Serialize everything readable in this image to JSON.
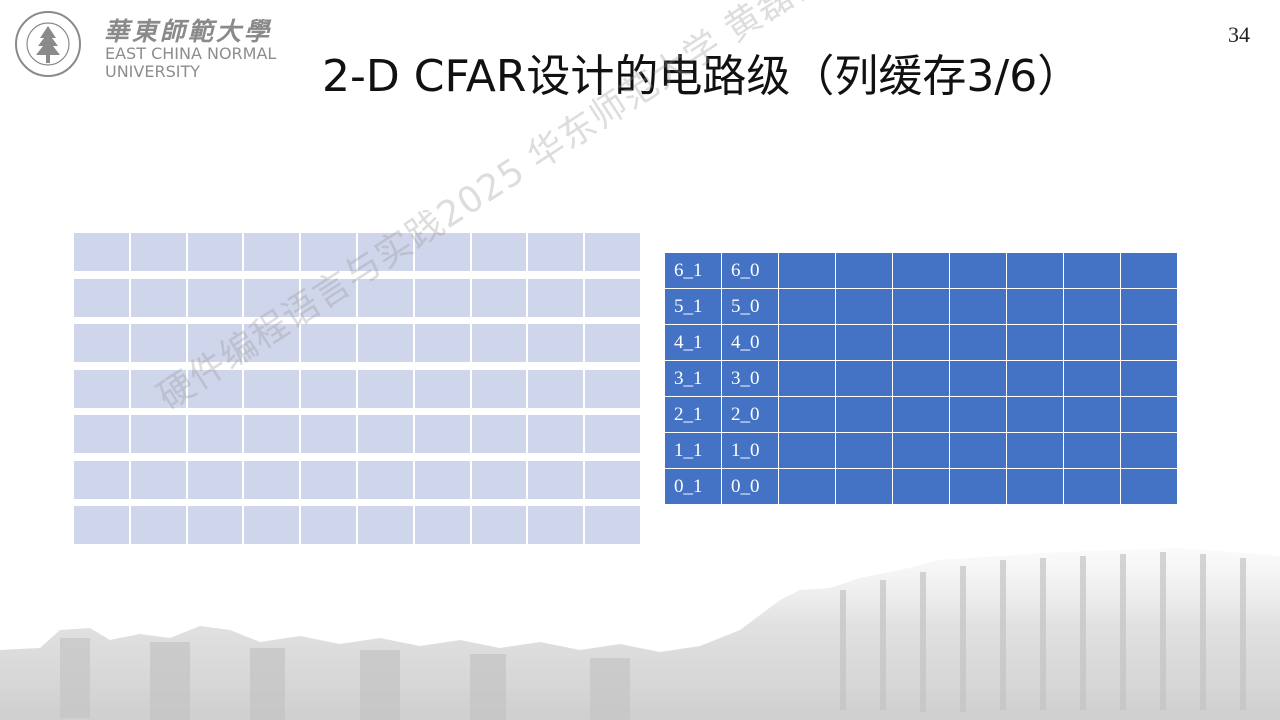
{
  "logo": {
    "cn_name": "華東師範大學",
    "en_line1": "EAST CHINA NORMAL",
    "en_line2": "UNIVERSITY"
  },
  "slide": {
    "title": "2-D CFAR设计的电路级（列缓存3/6）",
    "page_number": "34"
  },
  "watermark": "硬件编程语言与实践2025 华东师范大学 黄磊磊",
  "left_grid": {
    "rows": 7,
    "cols": 10
  },
  "right_table": {
    "rows": [
      [
        "6_1",
        "6_0",
        "",
        "",
        "",
        "",
        "",
        "",
        ""
      ],
      [
        "5_1",
        "5_0",
        "",
        "",
        "",
        "",
        "",
        "",
        ""
      ],
      [
        "4_1",
        "4_0",
        "",
        "",
        "",
        "",
        "",
        "",
        ""
      ],
      [
        "3_1",
        "3_0",
        "",
        "",
        "",
        "",
        "",
        "",
        ""
      ],
      [
        "2_1",
        "2_0",
        "",
        "",
        "",
        "",
        "",
        "",
        ""
      ],
      [
        "1_1",
        "1_0",
        "",
        "",
        "",
        "",
        "",
        "",
        ""
      ],
      [
        "0_1",
        "0_0",
        "",
        "",
        "",
        "",
        "",
        "",
        ""
      ]
    ]
  },
  "colors": {
    "table_fill": "#4472c4",
    "left_grid_fill": "#cfd5ea",
    "logo_gray": "#8a8a8a"
  }
}
